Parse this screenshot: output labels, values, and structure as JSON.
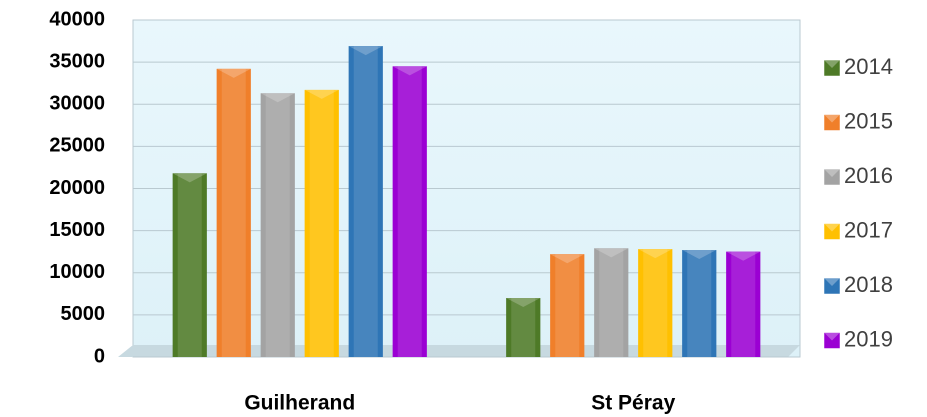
{
  "chart_data": {
    "type": "bar",
    "categories": [
      "Guilherand",
      "St Péray"
    ],
    "series": [
      {
        "name": "2014",
        "color": "#4e7a27",
        "values": [
          21800,
          7000
        ]
      },
      {
        "name": "2015",
        "color": "#f07f2a",
        "values": [
          34200,
          12200
        ]
      },
      {
        "name": "2016",
        "color": "#a3a3a3",
        "values": [
          31300,
          12900
        ]
      },
      {
        "name": "2017",
        "color": "#ffc000",
        "values": [
          31700,
          12800
        ]
      },
      {
        "name": "2018",
        "color": "#2e75b6",
        "values": [
          36900,
          12700
        ]
      },
      {
        "name": "2019",
        "color": "#9b00d3",
        "values": [
          34500,
          12500
        ]
      }
    ],
    "ylim": [
      0,
      40000
    ],
    "yticks": [
      0,
      5000,
      10000,
      15000,
      20000,
      25000,
      30000,
      35000,
      40000
    ],
    "grid": true,
    "legend": "right"
  }
}
